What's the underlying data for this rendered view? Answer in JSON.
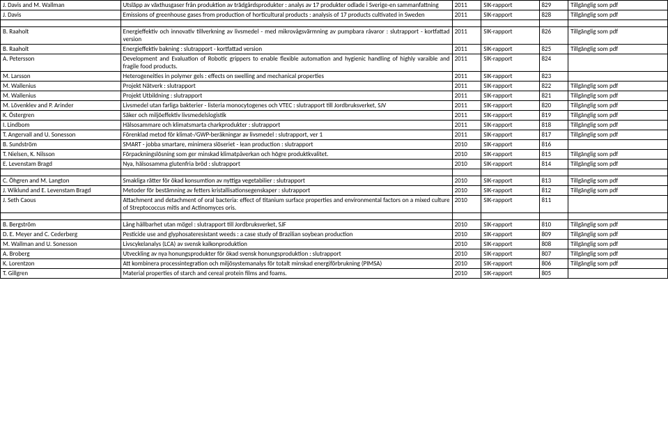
{
  "report_type_label": "SIK-rapport",
  "availability_label": "Tillgänglig som pdf",
  "groups": [
    {
      "rows": [
        {
          "author": "J. Davis and M. Wallman",
          "title": "Utsläpp av växthusgaser från produktion av trädgårdsprodukter : analys av 17 produkter odlade i Sverige-en sammanfattning",
          "year": "2011",
          "num": "829",
          "avail": true
        },
        {
          "author": "J. Davis",
          "title": "Emissions of greenhouse gases from production of horticultural products : analysis of 17 products cultivated in Sweden",
          "year": "2011",
          "num": "828",
          "avail": true
        }
      ]
    },
    {
      "rows": [
        {
          "author": "B. Raaholt",
          "title": "Energieffektiv och innovativ tillverkning av livsmedel - med mikrovågsvärmning av pumpbara råvaror : slutrapport - kortfattad version",
          "year": "2011",
          "num": "826",
          "avail": true
        },
        {
          "author": "B. Raaholt",
          "title": "Energieffektiv bakning : slutrapport - kortfattad version",
          "year": "2011",
          "num": "825",
          "avail": true
        },
        {
          "author": "A. Petersson",
          "title": "Development and Evaluation of Robotic grippers to enable flexible automation and hygienic handling of highly varaible and fragile food products.",
          "year": "2011",
          "num": "824",
          "avail": false
        },
        {
          "author": "M. Larsson",
          "title": "Heterogeneities in polymer gels : effects on swelling and mechanical properties",
          "year": "2011",
          "num": "823",
          "avail": false
        },
        {
          "author": "M. Wallenius",
          "title": "Projekt Nätverk : slutrapport",
          "year": "2011",
          "num": "822",
          "avail": true
        },
        {
          "author": "M. Wallenius",
          "title": "Projekt Utbildning : slutrapport",
          "year": "2011",
          "num": "821",
          "avail": true
        },
        {
          "author": "M. Lövenklev and P. Arinder",
          "title": "Livsmedel utan farliga bakterier - listeria monocytogenes och VTEC : slutrapport till Jordbruksverket, SJV",
          "year": "2011",
          "num": "820",
          "avail": true
        },
        {
          "author": "K. Östergren",
          "title": "Säker och miljöeffektiv livsmedelslogistik",
          "year": "2011",
          "num": "819",
          "avail": true
        },
        {
          "author": "I. Lindbom",
          "title": "Hälsosammare och klimatsmarta charkprodukter : slutrapport",
          "year": "2011",
          "num": "818",
          "avail": true
        },
        {
          "author": "T. Angervall and U. Sonesson",
          "title": "Förenklad metod för klimat-/GWP-beräkningar av livsmedel : slutrapport, ver 1",
          "year": "2011",
          "num": "817",
          "avail": true
        },
        {
          "author": "B. Sundström",
          "title": "SMART - jobba smartare, minimera slöseriet - lean production : slutrapport",
          "year": "2010",
          "num": "816",
          "avail": false
        },
        {
          "author": "T. Nielsen, K. Nilsson",
          "title": "Förpackningslösning som ger minskad klimatpåverkan och högre produktkvalitet.",
          "year": "2010",
          "num": "815",
          "avail": true
        },
        {
          "author": "E. Levenstam Bragd",
          "title": "Nya, hälsosamma glutenfria bröd : slutrapport",
          "year": "2010",
          "num": "814",
          "avail": true
        }
      ]
    },
    {
      "rows": [
        {
          "author": "C. Öhgren and M. Langton",
          "title": "Smakliga rätter för ökad konsumtion av nyttiga vegetabilier : slutrapport",
          "year": "2010",
          "num": "813",
          "avail": true
        },
        {
          "author": "J. Wiklund and E. Levenstam Bragd",
          "title": "Metoder för bestämning av fetters kristallisationsegenskaper : slutrapport",
          "year": "2010",
          "num": "812",
          "avail": true
        },
        {
          "author": "J. Seth Caous",
          "title": "Attachment and detachment of oral bacteria: effect of titanium surface properties and environmental factors on a mixed culture of Streptococcus mitis and Actinomyces oris.",
          "year": "2010",
          "num": "811",
          "avail": false
        }
      ]
    },
    {
      "rows": [
        {
          "author": "B. Bergström",
          "title": "Lång hållbarhet utan mögel : slutrapport till Jordbruksverket, SJF",
          "year": "2010",
          "num": "810",
          "avail": true
        },
        {
          "author": "D. E. Meyer and C. Cederberg",
          "title": "Pesticide use and glyphosateresistant weeds : a case study of Brazilian soybean production",
          "year": "2010",
          "num": "809",
          "avail": true
        },
        {
          "author": "M. Wallman and U. Sonesson",
          "title": "Livscykelanalys (LCA) av svensk kalkonproduktion",
          "year": "2010",
          "num": "808",
          "avail": true
        },
        {
          "author": "A. Broberg",
          "title": "Utveckling av nya honungsprodukter för ökad svensk honungsproduktion : slutrapport",
          "year": "2010",
          "num": "807",
          "avail": true
        },
        {
          "author": "K. Lorentzon",
          "title": "Att kombinera processintegration och miljösystemanalys för totalt minskad energiförbrukning (PIMSA)",
          "year": "2010",
          "num": "806",
          "avail": true
        },
        {
          "author": "T. Gillgren",
          "title": "Material properties of starch and cereal protein films and foams.",
          "year": "2010",
          "num": "805",
          "avail": false
        }
      ]
    }
  ]
}
